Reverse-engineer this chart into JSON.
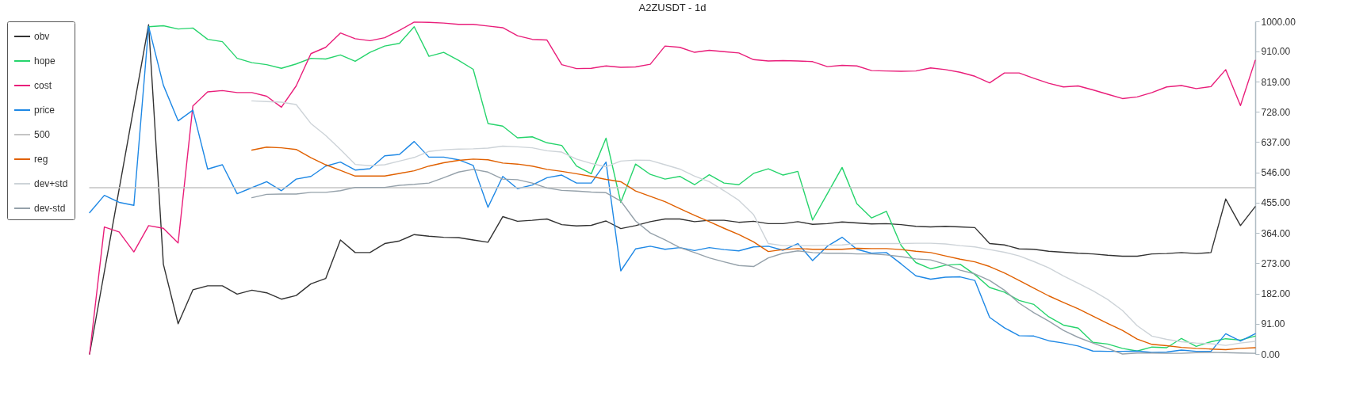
{
  "chart_data": {
    "type": "line",
    "title": "A2ZUSDT - 1d",
    "categories": [
      null,
      null,
      null,
      null,
      null,
      null,
      null,
      null,
      null,
      null,
      null,
      null,
      null,
      null,
      null,
      null,
      null,
      null,
      null,
      null,
      null,
      null,
      null,
      null,
      null,
      null,
      null,
      null,
      null,
      null,
      null,
      null,
      null,
      null,
      null,
      null,
      null,
      null,
      null,
      null,
      null,
      null,
      null,
      null,
      null,
      null,
      null,
      null,
      null,
      null,
      null,
      null,
      null,
      null,
      null,
      null,
      null,
      null,
      null,
      null,
      null,
      null,
      null,
      null,
      null,
      null,
      null,
      null,
      null,
      null,
      null,
      null,
      null,
      null,
      null,
      null,
      null,
      null,
      null,
      null
    ],
    "series": [
      {
        "name": "obv",
        "color": "#333333",
        "values": [
          0,
          null,
          null,
          null,
          990,
          270,
          91,
          193,
          205,
          205,
          180,
          192,
          184,
          165,
          176,
          211,
          227,
          343,
          305,
          305,
          332,
          340,
          359,
          354,
          351,
          350,
          343,
          336,
          413,
          399,
          402,
          406,
          389,
          385,
          387,
          400,
          377,
          386,
          398,
          406,
          406,
          398,
          402,
          402,
          396,
          399,
          392,
          392,
          398,
          390,
          392,
          397,
          394,
          391,
          392,
          389,
          384,
          382,
          384,
          382,
          380,
          332,
          328,
          316,
          315,
          309,
          306,
          303,
          301,
          297,
          294,
          294,
          301,
          302,
          305,
          302,
          305,
          466,
          386,
          443
        ]
      },
      {
        "name": "hope",
        "color": "#26d46c",
        "values": [
          null,
          null,
          null,
          null,
          984,
          987,
          977,
          980,
          946,
          939,
          889,
          876,
          870,
          859,
          872,
          889,
          887,
          899,
          880,
          907,
          926,
          934,
          984,
          895,
          907,
          883,
          856,
          693,
          685,
          650,
          653,
          635,
          627,
          565,
          542,
          649,
          456,
          571,
          540,
          526,
          534,
          509,
          539,
          514,
          509,
          543,
          557,
          538,
          549,
          403,
          482,
          561,
          452,
          409,
          429,
          326,
          275,
          256,
          267,
          270,
          239,
          200,
          186,
          161,
          149,
          112,
          87,
          78,
          35,
          30,
          17,
          9,
          21,
          19,
          47,
          23,
          37,
          46,
          42,
          54
        ]
      },
      {
        "name": "cost",
        "color": "#e91e7a",
        "values": [
          0,
          382,
          367,
          307,
          386,
          378,
          334,
          746,
          788,
          792,
          786,
          786,
          775,
          742,
          806,
          903,
          922,
          965,
          948,
          942,
          951,
          973,
          998,
          997,
          995,
          991,
          991,
          986,
          981,
          957,
          946,
          944,
          870,
          858,
          859,
          866,
          862,
          863,
          871,
          926,
          922,
          907,
          913,
          909,
          905,
          885,
          881,
          882,
          881,
          879,
          864,
          868,
          866,
          852,
          851,
          850,
          851,
          860,
          855,
          847,
          835,
          815,
          845,
          845,
          829,
          814,
          803,
          806,
          794,
          781,
          768,
          773,
          786,
          803,
          807,
          798,
          804,
          855,
          747,
          883
        ]
      },
      {
        "name": "price",
        "color": "#1e88e5",
        "values": [
          425,
          477,
          456,
          447,
          985,
          808,
          701,
          733,
          556,
          569,
          482,
          500,
          518,
          491,
          526,
          534,
          565,
          577,
          553,
          557,
          596,
          600,
          639,
          592,
          592,
          584,
          567,
          441,
          534,
          497,
          508,
          530,
          538,
          514,
          514,
          577,
          250,
          316,
          324,
          315,
          320,
          311,
          320,
          314,
          310,
          322,
          324,
          312,
          332,
          281,
          324,
          351,
          315,
          303,
          305,
          271,
          235,
          225,
          231,
          232,
          221,
          110,
          79,
          55,
          54,
          40,
          33,
          24,
          9,
          8,
          8,
          9,
          5,
          6,
          12,
          8,
          8,
          61,
          39,
          61
        ]
      },
      {
        "name": "500",
        "color": "#c4c4c4",
        "values": [
          500,
          500,
          500,
          500,
          500,
          500,
          500,
          500,
          500,
          500,
          500,
          500,
          500,
          500,
          500,
          500,
          500,
          500,
          500,
          500,
          500,
          500,
          500,
          500,
          500,
          500,
          500,
          500,
          500,
          500,
          500,
          500,
          500,
          500,
          500,
          500,
          500,
          500,
          500,
          500,
          500,
          500,
          500,
          500,
          500,
          500,
          500,
          500,
          500,
          500,
          500,
          500,
          500,
          500,
          500,
          500,
          500,
          500,
          500,
          500,
          500,
          500,
          500,
          500,
          500,
          500,
          500,
          500,
          500,
          500,
          500,
          500,
          500,
          500,
          500,
          500,
          500,
          500,
          500,
          500
        ]
      },
      {
        "name": "reg",
        "color": "#e06000",
        "values": [
          null,
          null,
          null,
          null,
          null,
          null,
          null,
          null,
          null,
          null,
          null,
          613,
          622,
          620,
          615,
          590,
          569,
          552,
          535,
          535,
          535,
          543,
          551,
          565,
          575,
          582,
          586,
          584,
          574,
          571,
          565,
          555,
          549,
          542,
          534,
          525,
          518,
          490,
          474,
          458,
          437,
          417,
          398,
          378,
          359,
          337,
          308,
          314,
          317,
          315,
          315,
          315,
          318,
          317,
          317,
          314,
          309,
          305,
          295,
          285,
          277,
          263,
          244,
          221,
          198,
          175,
          155,
          136,
          114,
          92,
          71,
          45,
          29,
          25,
          20,
          17,
          15,
          13,
          17,
          19
        ]
      },
      {
        "name": "dev+std",
        "color": "#cdd3d8",
        "values": [
          null,
          null,
          null,
          null,
          null,
          null,
          null,
          null,
          null,
          null,
          null,
          761,
          759,
          757,
          750,
          693,
          657,
          615,
          570,
          566,
          569,
          580,
          591,
          609,
          614,
          616,
          617,
          619,
          625,
          623,
          620,
          611,
          607,
          586,
          573,
          563,
          580,
          583,
          582,
          569,
          556,
          535,
          518,
          491,
          462,
          419,
          332,
          326,
          326,
          326,
          327,
          328,
          332,
          332,
          332,
          332,
          333,
          333,
          331,
          326,
          322,
          314,
          306,
          295,
          278,
          259,
          235,
          213,
          190,
          164,
          131,
          85,
          54,
          44,
          37,
          33,
          31,
          26,
          33,
          38
        ]
      },
      {
        "name": "dev-std",
        "color": "#95a1aa",
        "values": [
          null,
          null,
          null,
          null,
          null,
          null,
          null,
          null,
          null,
          null,
          null,
          470,
          480,
          481,
          481,
          486,
          486,
          491,
          501,
          501,
          501,
          507,
          510,
          514,
          530,
          547,
          555,
          547,
          526,
          524,
          514,
          499,
          492,
          490,
          487,
          485,
          460,
          400,
          364,
          343,
          320,
          305,
          289,
          277,
          266,
          263,
          289,
          303,
          310,
          305,
          303,
          303,
          301,
          301,
          298,
          293,
          286,
          283,
          270,
          252,
          241,
          221,
          192,
          153,
          124,
          99,
          71,
          50,
          33,
          17,
          0,
          3,
          3,
          2,
          2,
          4,
          5,
          4,
          3,
          2
        ]
      }
    ],
    "ylim": [
      0,
      1000
    ],
    "yticks": [
      {
        "value": 0,
        "label": "0.00"
      },
      {
        "value": 91,
        "label": "91.00"
      },
      {
        "value": 182,
        "label": "182.00"
      },
      {
        "value": 273,
        "label": "273.00"
      },
      {
        "value": 364,
        "label": "364.00"
      },
      {
        "value": 455,
        "label": "455.00"
      },
      {
        "value": 546,
        "label": "546.00"
      },
      {
        "value": 637,
        "label": "637.00"
      },
      {
        "value": 728,
        "label": "728.00"
      },
      {
        "value": 819,
        "label": "819.00"
      },
      {
        "value": 910,
        "label": "910.00"
      },
      {
        "value": 1000,
        "label": "1000.00"
      }
    ],
    "legend": "top left",
    "tick_labels": "y"
  }
}
